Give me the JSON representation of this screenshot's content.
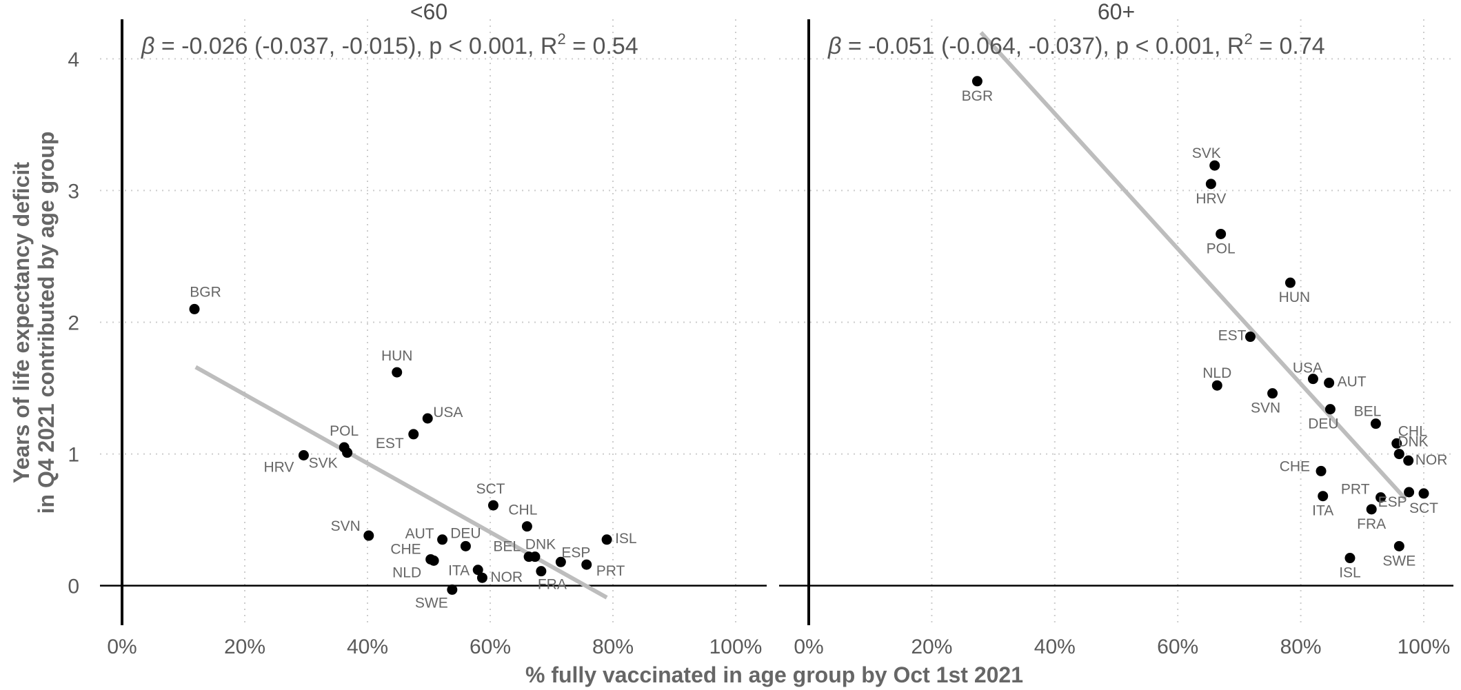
{
  "chart_data": {
    "type": "scatter",
    "xlabel": "% fully vaccinated in age group by Oct 1st 2021",
    "ylabel_lines": [
      "Years of life expectancy deficit",
      "in Q4 2021 contributed by age group"
    ],
    "xlim": [
      0,
      1
    ],
    "ylim": [
      -0.3,
      4.3
    ],
    "x_ticks": [
      0,
      0.2,
      0.4,
      0.6,
      0.8,
      1.0
    ],
    "x_tick_labels": [
      "0%",
      "20%",
      "40%",
      "60%",
      "80%",
      "100%"
    ],
    "y_ticks": [
      0,
      1,
      2,
      3,
      4
    ],
    "y_tick_labels": [
      "0",
      "1",
      "2",
      "3",
      "4"
    ],
    "grid": true,
    "panels": [
      {
        "facet": "<60",
        "annotation": {
          "beta_symbol": "β",
          "text_main": " = -0.026 (-0.037, -0.015), p < 0.001, R",
          "sup": "2",
          "text_tail": " = 0.54"
        },
        "fit": {
          "x": [
            0.12,
            0.79
          ],
          "y": [
            1.66,
            -0.09
          ]
        },
        "points": [
          {
            "label": "BGR",
            "x": 0.118,
            "y": 2.1
          },
          {
            "label": "HUN",
            "x": 0.448,
            "y": 1.62
          },
          {
            "label": "USA",
            "x": 0.498,
            "y": 1.27
          },
          {
            "label": "EST",
            "x": 0.475,
            "y": 1.15
          },
          {
            "label": "POL",
            "x": 0.362,
            "y": 1.05
          },
          {
            "label": "SVK",
            "x": 0.367,
            "y": 1.01
          },
          {
            "label": "HRV",
            "x": 0.296,
            "y": 0.99
          },
          {
            "label": "SCT",
            "x": 0.605,
            "y": 0.61
          },
          {
            "label": "CHL",
            "x": 0.66,
            "y": 0.45
          },
          {
            "label": "SVN",
            "x": 0.402,
            "y": 0.38
          },
          {
            "label": "ISL",
            "x": 0.79,
            "y": 0.35
          },
          {
            "label": "AUT",
            "x": 0.522,
            "y": 0.35
          },
          {
            "label": "DEU",
            "x": 0.56,
            "y": 0.3
          },
          {
            "label": "BEL",
            "x": 0.663,
            "y": 0.22
          },
          {
            "label": "DNK",
            "x": 0.673,
            "y": 0.22
          },
          {
            "label": "CHE",
            "x": 0.503,
            "y": 0.2
          },
          {
            "label": "NLD",
            "x": 0.508,
            "y": 0.19
          },
          {
            "label": "ESP",
            "x": 0.715,
            "y": 0.18
          },
          {
            "label": "PRT",
            "x": 0.757,
            "y": 0.16
          },
          {
            "label": "ITA",
            "x": 0.58,
            "y": 0.12
          },
          {
            "label": "FRA",
            "x": 0.683,
            "y": 0.11
          },
          {
            "label": "NOR",
            "x": 0.587,
            "y": 0.06
          },
          {
            "label": "SWE",
            "x": 0.538,
            "y": -0.03
          }
        ]
      },
      {
        "facet": "60+",
        "annotation": {
          "beta_symbol": "β",
          "text_main": " = -0.051 (-0.064, -0.037), p < 0.001, R",
          "sup": "2",
          "text_tail": " = 0.74"
        },
        "fit": {
          "x": [
            0.28,
            0.97
          ],
          "y": [
            4.2,
            0.66
          ]
        },
        "points": [
          {
            "label": "BGR",
            "x": 0.274,
            "y": 3.83
          },
          {
            "label": "SVK",
            "x": 0.66,
            "y": 3.19
          },
          {
            "label": "HRV",
            "x": 0.654,
            "y": 3.05
          },
          {
            "label": "POL",
            "x": 0.67,
            "y": 2.67
          },
          {
            "label": "HUN",
            "x": 0.783,
            "y": 2.3
          },
          {
            "label": "EST",
            "x": 0.718,
            "y": 1.89
          },
          {
            "label": "USA",
            "x": 0.82,
            "y": 1.57
          },
          {
            "label": "AUT",
            "x": 0.846,
            "y": 1.54
          },
          {
            "label": "NLD",
            "x": 0.664,
            "y": 1.52
          },
          {
            "label": "SVN",
            "x": 0.754,
            "y": 1.46
          },
          {
            "label": "DEU",
            "x": 0.848,
            "y": 1.34
          },
          {
            "label": "BEL",
            "x": 0.922,
            "y": 1.23
          },
          {
            "label": "CHL",
            "x": 0.956,
            "y": 1.08
          },
          {
            "label": "DNK",
            "x": 0.96,
            "y": 1.0
          },
          {
            "label": "NOR",
            "x": 0.975,
            "y": 0.95
          },
          {
            "label": "CHE",
            "x": 0.833,
            "y": 0.87
          },
          {
            "label": "SCT",
            "x": 1.0,
            "y": 0.7
          },
          {
            "label": "ESP",
            "x": 0.976,
            "y": 0.71
          },
          {
            "label": "ITA",
            "x": 0.836,
            "y": 0.68
          },
          {
            "label": "PRT",
            "x": 0.93,
            "y": 0.67
          },
          {
            "label": "FRA",
            "x": 0.915,
            "y": 0.58
          },
          {
            "label": "SWE",
            "x": 0.96,
            "y": 0.3
          },
          {
            "label": "ISL",
            "x": 0.88,
            "y": 0.21
          }
        ]
      }
    ]
  }
}
